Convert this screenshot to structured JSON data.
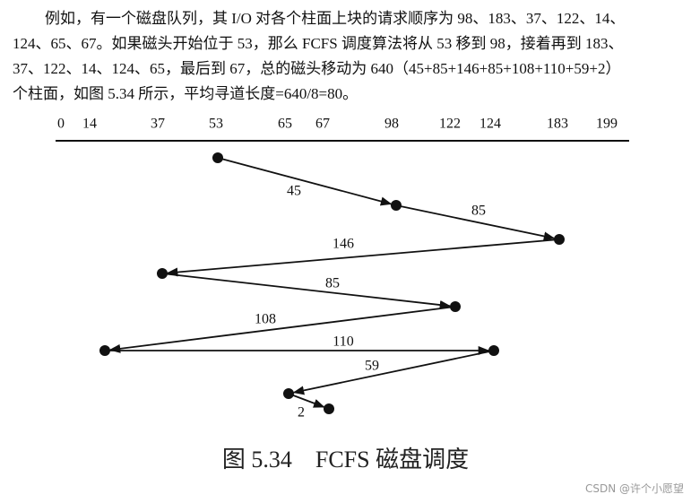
{
  "paragraph": {
    "lines": [
      "例如，有一个磁盘队列，其 I/O 对各个柱面上块的请求顺序为 98、183、37、122、14、",
      "124、65、67。如果磁头开始位于 53，那么 FCFS 调度算法将从 53 移到 98，接着再到 183、",
      "37、122、14、124、65，最后到 67，总的磁头移动为 640（45+85+146+85+108+110+59+2）",
      "个柱面，如图 5.34 所示，平均寻道长度=640/8=80。"
    ]
  },
  "diagram": {
    "axis_labels": [
      0,
      14,
      37,
      53,
      65,
      67,
      98,
      122,
      124,
      183,
      199
    ],
    "visits": [
      53,
      98,
      183,
      37,
      122,
      14,
      124,
      65,
      67
    ],
    "moves": [
      45,
      85,
      146,
      85,
      108,
      110,
      59,
      2
    ]
  },
  "caption": "图 5.34　FCFS 磁盘调度",
  "watermark": "CSDN @许个小愿望"
}
